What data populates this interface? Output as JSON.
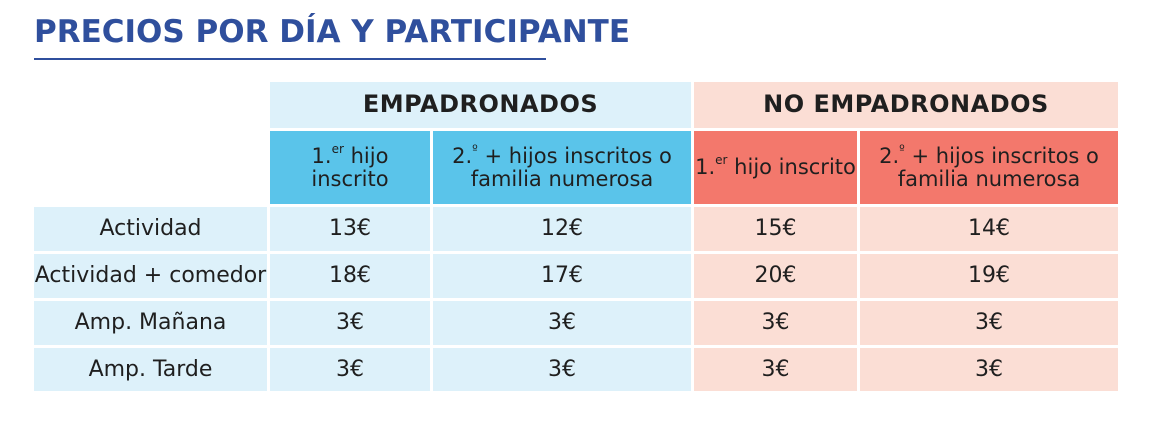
{
  "title": "PRECIOS POR DÍA Y PARTICIPANTE",
  "groups": {
    "empadronados": "EMPADRONADOS",
    "no_empadronados": "NO  EMPADRONADOS"
  },
  "subheaders": {
    "first_child_prefix": "1.",
    "first_child_sup": "er",
    "first_child_text": " hijo inscrito",
    "second_child_prefix": "2.",
    "second_child_sup": "º",
    "second_child_line1": "+ hijos inscritos o",
    "second_child_line2": "familia numerosa"
  },
  "rows": [
    {
      "label": "Actividad",
      "values": [
        "13€",
        "12€",
        "15€",
        "14€"
      ]
    },
    {
      "label": "Actividad + comedor",
      "values": [
        "18€",
        "17€",
        "20€",
        "19€"
      ]
    },
    {
      "label": "Amp. Mañana",
      "values": [
        "3€",
        "3€",
        "3€",
        "3€"
      ]
    },
    {
      "label": "Amp. Tarde",
      "values": [
        "3€",
        "3€",
        "3€",
        "3€"
      ]
    }
  ],
  "colors": {
    "title": "#2f4f9d",
    "empadronados_header": "#ddf1fa",
    "empadronados_subheader": "#5ac4ea",
    "no_empadronados_header": "#fbded5",
    "no_empadronados_subheader": "#f3786c"
  }
}
